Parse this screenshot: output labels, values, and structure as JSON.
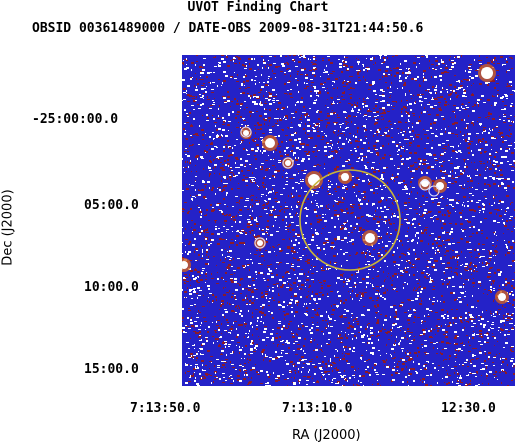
{
  "title": "UVOT Finding Chart",
  "subtitle": "OBSID 00361489000 / DATE-OBS 2009-08-31T21:44:50.6",
  "axes": {
    "xlabel": "RA (J2000)",
    "ylabel": "Dec (J2000)",
    "yticks": [
      "-25:00:00.0",
      "05:00.0",
      "10:00.0",
      "15:00.0"
    ],
    "xticks": [
      "7:13:50.0",
      "7:13:10.0",
      "12:30.0"
    ]
  },
  "colors": {
    "background": "#2422c8",
    "speckle_dark": "#8a1a2a",
    "speckle_bright": "#ffffff",
    "source_circle": "#c8b43a"
  }
}
